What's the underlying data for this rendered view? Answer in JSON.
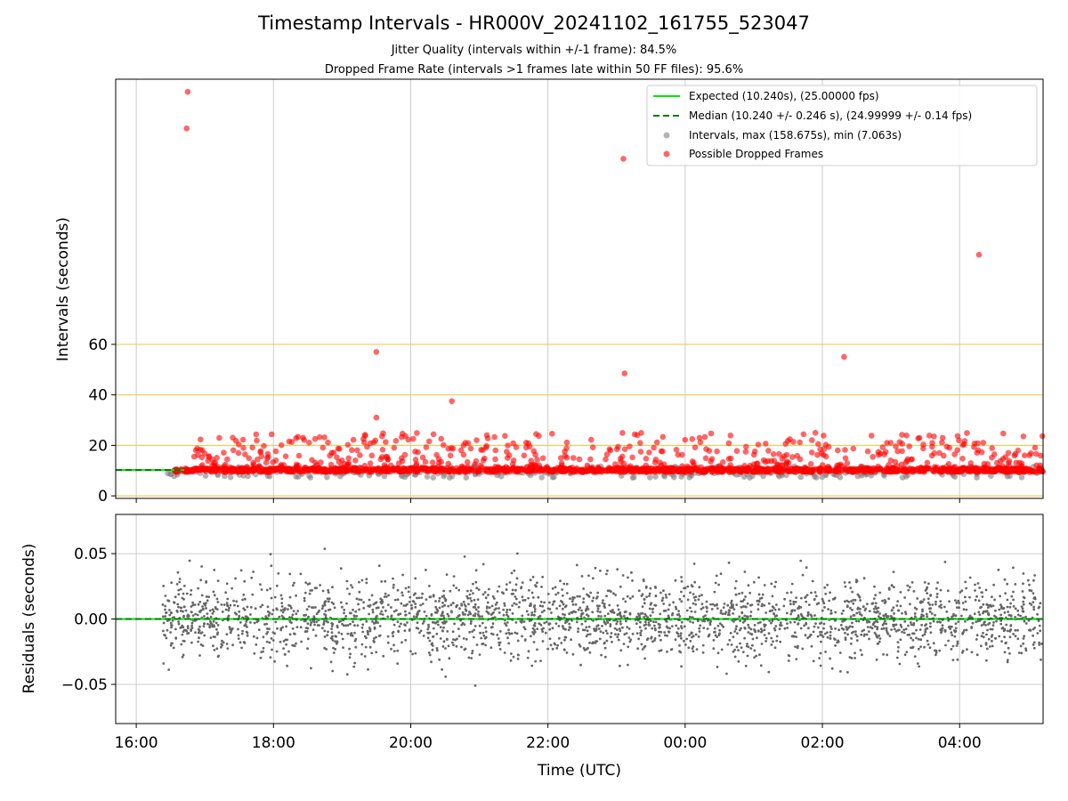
{
  "colors": {
    "expected_line": "#00e600",
    "median_line": "#007a00",
    "interval_points": "#808080",
    "dropped_points": "#ff0000",
    "ref_lines": "#f2c94c",
    "grid": "#cccccc",
    "residual_points": "#666666"
  },
  "chart_data": [
    {
      "type": "scatter",
      "title": "Timestamp Intervals - HR000V_20241102_161755_523047",
      "subtitle_lines": [
        "Jitter Quality (intervals within +/-1 frame): 84.5%",
        "Dropped Frame Rate (intervals >1 frames late within 50 FF files): 95.6%"
      ],
      "xlabel": "",
      "ylabel": "Intervals (seconds)",
      "ylim": [
        -1,
        165
      ],
      "yticks": [
        0,
        20,
        40,
        60
      ],
      "reference_lines_y": [
        0,
        20,
        40,
        60
      ],
      "grid": true,
      "legend_position": "top-right",
      "legend": [
        "Expected (10.240s), (25.00000 fps)",
        "Median (10.240 +/- 0.246 s), (24.99999 +/- 0.14 fps)",
        "Intervals, max (158.675s), min (7.063s)",
        "Possible Dropped Frames"
      ],
      "expected_interval_s": 10.24,
      "median_interval_s": 10.24,
      "dropped_outliers": [
        {
          "x": "2024-11-02 16:45",
          "y": 160
        },
        {
          "x": "2024-11-02 16:44",
          "y": 145.5
        },
        {
          "x": "2024-11-02 19:30",
          "y": 57
        },
        {
          "x": "2024-11-02 19:30",
          "y": 31
        },
        {
          "x": "2024-11-02 20:36",
          "y": 37.5
        },
        {
          "x": "2024-11-02 23:06",
          "y": 133.5
        },
        {
          "x": "2024-11-02 23:07",
          "y": 48.5
        },
        {
          "x": "2024-11-03 02:19",
          "y": 55
        },
        {
          "x": "2024-11-03 04:17",
          "y": 95.5
        }
      ],
      "dropped_band_s": [
        10,
        26
      ],
      "interval_band_s": [
        7,
        12
      ]
    },
    {
      "type": "scatter",
      "title": "",
      "xlabel": "Time (UTC)",
      "ylabel": "Residuals (seconds)",
      "ylim": [
        -0.08,
        0.08
      ],
      "yticks": [
        0.05,
        0.0,
        -0.05
      ],
      "ytick_labels": [
        "0.05",
        "0.00",
        "−0.05"
      ],
      "xlim": [
        "2024-11-02 15:42",
        "2024-11-03 05:13"
      ],
      "xticks": [
        "16:00",
        "18:00",
        "20:00",
        "22:00",
        "00:00",
        "02:00",
        "04:00"
      ],
      "grid": true,
      "residual_spread_s": 0.015
    }
  ]
}
